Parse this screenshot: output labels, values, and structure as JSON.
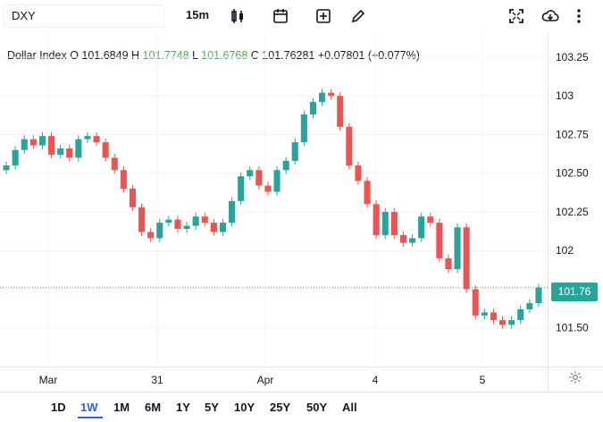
{
  "toolbar": {
    "symbol": "DXY",
    "interval": "15m",
    "icons": [
      "candles-icon",
      "calendar-icon",
      "add-icon",
      "draw-icon",
      "fullscreen-icon",
      "cloud-download-icon",
      "more-icon"
    ]
  },
  "legend": {
    "name": "Dollar Index",
    "open_label": "O",
    "open": "101.6849",
    "high_label": "H",
    "high": "101.7748",
    "low_label": "L",
    "low": "101.6768",
    "close_label": "C",
    "close": "101.76281",
    "change": "+0.07801 (+0.077%)"
  },
  "chart_data": {
    "type": "candlestick",
    "title": "Dollar Index",
    "y_axis_labels": [
      "103.25",
      "103",
      "102.75",
      "102.50",
      "102.25",
      "102",
      "101.50"
    ],
    "ylim": [
      101.25,
      103.4
    ],
    "x_axis_labels": [
      "Mar",
      "31",
      "Apr",
      "4",
      "5"
    ],
    "last_price": "101.76",
    "up_color": "#26a69a",
    "down_color": "#ef5350",
    "series": [
      {
        "name": "close",
        "values": [
          102.55,
          102.65,
          102.72,
          102.68,
          102.74,
          102.62,
          102.66,
          102.6,
          102.72,
          102.74,
          102.7,
          102.6,
          102.52,
          102.4,
          102.28,
          102.12,
          102.08,
          102.18,
          102.2,
          102.14,
          102.16,
          102.22,
          102.18,
          102.12,
          102.18,
          102.32,
          102.48,
          102.52,
          102.42,
          102.38,
          102.52,
          102.58,
          102.7,
          102.88,
          102.96,
          103.02,
          103.0,
          102.8,
          102.55,
          102.45,
          102.3,
          102.1,
          102.25,
          102.1,
          102.05,
          102.08,
          102.22,
          102.18,
          101.95,
          101.88,
          102.15,
          101.75,
          101.58,
          101.6,
          101.55,
          101.52,
          101.55,
          101.62,
          101.66,
          101.76
        ]
      }
    ]
  },
  "bottom_bar": {
    "ranges": [
      "1D",
      "1W",
      "1M",
      "6M",
      "1Y",
      "5Y",
      "10Y",
      "25Y",
      "50Y",
      "All"
    ],
    "active": "1W"
  }
}
